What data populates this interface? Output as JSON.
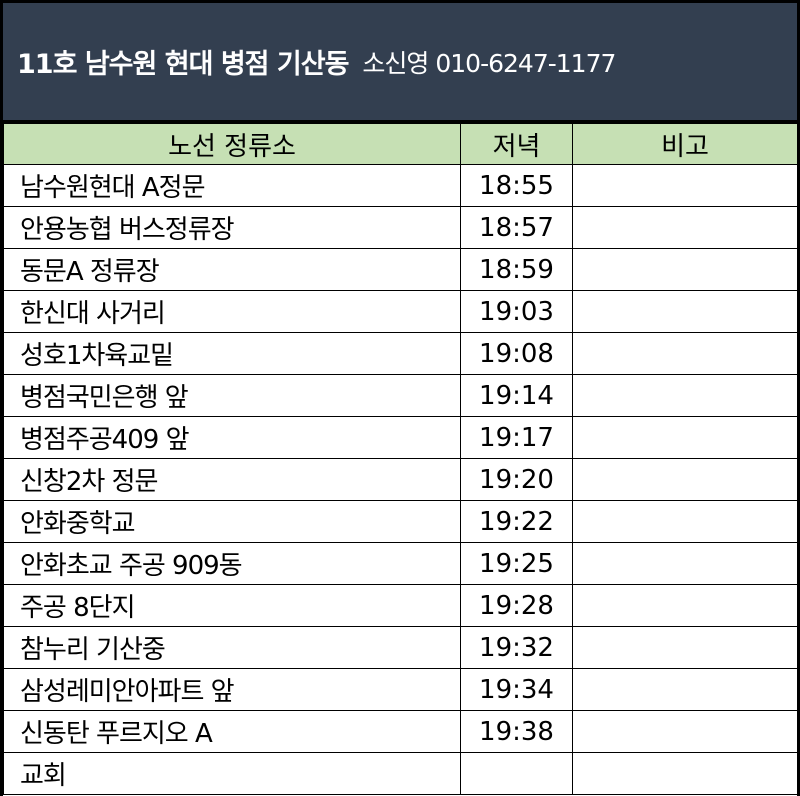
{
  "header": {
    "title": "11호 남수원 현대 병점 기산동",
    "contact": "소신영 010-6247-1177"
  },
  "columns": [
    "노선 정류소",
    "저녁",
    "비고"
  ],
  "rows": [
    {
      "stop": "남수원현대 A정문",
      "time": "18:55",
      "note": ""
    },
    {
      "stop": "안용농협 버스정류장",
      "time": "18:57",
      "note": ""
    },
    {
      "stop": "동문A 정류장",
      "time": "18:59",
      "note": ""
    },
    {
      "stop": "한신대 사거리",
      "time": "19:03",
      "note": ""
    },
    {
      "stop": "성호1차육교밑",
      "time": "19:08",
      "note": ""
    },
    {
      "stop": "병점국민은행 앞",
      "time": "19:14",
      "note": ""
    },
    {
      "stop": "병점주공409 앞",
      "time": "19:17",
      "note": ""
    },
    {
      "stop": "신창2차 정문",
      "time": "19:20",
      "note": ""
    },
    {
      "stop": "안화중학교",
      "time": "19:22",
      "note": ""
    },
    {
      "stop": "안화초교 주공 909동",
      "time": "19:25",
      "note": ""
    },
    {
      "stop": "주공 8단지",
      "time": "19:28",
      "note": ""
    },
    {
      "stop": "참누리 기산중",
      "time": "19:32",
      "note": ""
    },
    {
      "stop": "삼성레미안아파트 앞",
      "time": "19:34",
      "note": ""
    },
    {
      "stop": "신동탄 푸르지오 A",
      "time": "19:38",
      "note": ""
    },
    {
      "stop": "교회",
      "time": "",
      "note": ""
    }
  ],
  "colors": {
    "header_bg": "#333f50",
    "column_header_bg": "#c6e0b4"
  }
}
